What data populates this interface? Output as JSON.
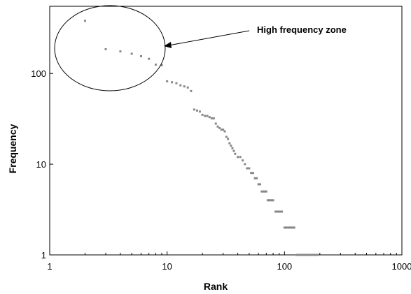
{
  "chart_data": {
    "type": "scatter",
    "xlabel": "Rank",
    "ylabel": "Frequency",
    "x_scale": "log",
    "y_scale": "log",
    "xlim": [
      1,
      1000
    ],
    "ylim": [
      1,
      550
    ],
    "x_ticks": [
      1,
      10,
      100,
      1000
    ],
    "x_tick_labels": [
      "1",
      "10",
      "100",
      "1000"
    ],
    "y_ticks": [
      1,
      10,
      100
    ],
    "y_tick_labels": [
      "1",
      "10",
      "100"
    ],
    "grid": false,
    "legend": "none",
    "marker_color": "#888888",
    "annotation": {
      "text": "High frequency zone",
      "target": "ellipse around ranks 1-10"
    },
    "series": [
      {
        "points": [
          [
            2,
            380
          ],
          [
            3,
            185
          ],
          [
            4,
            175
          ],
          [
            5,
            165
          ],
          [
            6,
            155
          ],
          [
            7,
            145
          ],
          [
            8,
            125
          ],
          [
            9,
            123
          ],
          [
            10,
            82
          ],
          [
            11,
            80
          ],
          [
            12,
            78
          ],
          [
            13,
            74
          ],
          [
            14,
            72
          ],
          [
            15,
            70
          ],
          [
            16,
            64
          ],
          [
            17,
            40
          ],
          [
            18,
            39
          ],
          [
            19,
            38
          ],
          [
            20,
            35
          ],
          [
            21,
            34
          ],
          [
            22,
            34
          ],
          [
            23,
            33
          ],
          [
            24,
            32
          ],
          [
            25,
            32
          ],
          [
            26,
            28
          ],
          [
            27,
            26
          ],
          [
            28,
            25
          ],
          [
            29,
            24
          ],
          [
            30,
            24
          ],
          [
            31,
            23
          ],
          [
            32,
            20
          ],
          [
            33,
            19
          ],
          [
            34,
            17
          ],
          [
            35,
            16
          ],
          [
            36,
            15
          ],
          [
            37,
            14
          ],
          [
            38,
            13
          ],
          [
            40,
            12
          ],
          [
            42,
            12
          ],
          [
            44,
            11
          ],
          [
            46,
            10
          ],
          [
            48,
            9
          ],
          [
            50,
            9
          ],
          [
            52,
            8
          ],
          [
            54,
            8
          ],
          [
            56,
            7
          ],
          [
            58,
            7
          ],
          [
            60,
            6
          ],
          [
            62,
            6
          ],
          [
            64,
            5
          ],
          [
            66,
            5
          ],
          [
            68,
            5
          ],
          [
            70,
            5
          ],
          [
            72,
            4
          ],
          [
            74,
            4
          ],
          [
            76,
            4
          ],
          [
            78,
            4
          ],
          [
            80,
            4
          ],
          [
            84,
            3
          ],
          [
            86,
            3
          ],
          [
            88,
            3
          ],
          [
            90,
            3
          ],
          [
            92,
            3
          ],
          [
            95,
            3
          ],
          [
            100,
            2
          ],
          [
            103,
            2
          ],
          [
            106,
            2
          ],
          [
            109,
            2
          ],
          [
            112,
            2
          ],
          [
            115,
            2
          ],
          [
            118,
            2
          ],
          [
            121,
            2
          ],
          [
            128,
            1
          ],
          [
            132,
            1
          ],
          [
            136,
            1
          ],
          [
            140,
            1
          ],
          [
            144,
            1
          ],
          [
            148,
            1
          ],
          [
            152,
            1
          ],
          [
            156,
            1
          ],
          [
            160,
            1
          ],
          [
            164,
            1
          ],
          [
            168,
            1
          ],
          [
            172,
            1
          ],
          [
            176,
            1
          ],
          [
            180,
            1
          ],
          [
            184,
            1
          ],
          [
            188,
            1
          ],
          [
            192,
            1
          ]
        ]
      }
    ]
  }
}
